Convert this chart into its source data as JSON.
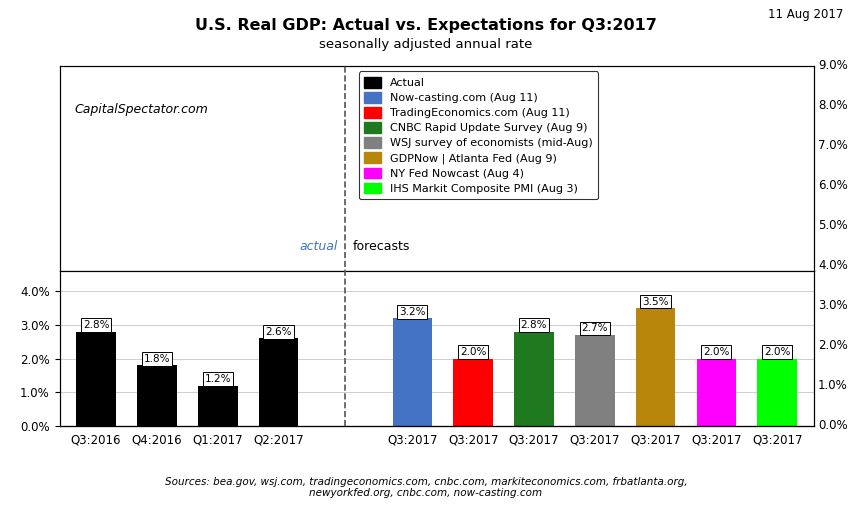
{
  "title": "U.S. Real GDP: Actual vs. Expectations for Q3:2017",
  "subtitle": "seasonally adjusted annual rate",
  "date_label": "11 Aug 2017",
  "source_text": "Sources: bea.gov, wsj.com, tradingeconomics.com, cnbc.com, markiteconomics.com, frbatlanta.org,\nnewyorkfed.org, cnbc.com, now-casting.com",
  "watermark": "CapitalSpectator.com",
  "bars": [
    {
      "label": "Q3:2016",
      "value": 2.8,
      "color": "#000000",
      "section": "actual"
    },
    {
      "label": "Q4:2016",
      "value": 1.8,
      "color": "#000000",
      "section": "actual"
    },
    {
      "label": "Q1:2017",
      "value": 1.2,
      "color": "#000000",
      "section": "actual"
    },
    {
      "label": "Q2:2017",
      "value": 2.6,
      "color": "#000000",
      "section": "actual"
    },
    {
      "label": "Q3:2017",
      "value": 3.2,
      "color": "#4472C4",
      "section": "forecast"
    },
    {
      "label": "Q3:2017",
      "value": 2.0,
      "color": "#FF0000",
      "section": "forecast"
    },
    {
      "label": "Q3:2017",
      "value": 2.8,
      "color": "#1F7A1F",
      "section": "forecast"
    },
    {
      "label": "Q3:2017",
      "value": 2.7,
      "color": "#808080",
      "section": "forecast"
    },
    {
      "label": "Q3:2017",
      "value": 3.5,
      "color": "#B8860B",
      "section": "forecast"
    },
    {
      "label": "Q3:2017",
      "value": 2.0,
      "color": "#FF00FF",
      "section": "forecast"
    },
    {
      "label": "Q3:2017",
      "value": 2.0,
      "color": "#00FF00",
      "section": "forecast"
    }
  ],
  "legend_entries": [
    {
      "label": "Actual",
      "color": "#000000"
    },
    {
      "label": "Now-casting.com (Aug 11)",
      "color": "#4472C4"
    },
    {
      "label": "TradingEconomics.com (Aug 11)",
      "color": "#FF0000"
    },
    {
      "label": "CNBC Rapid Update Survey (Aug 9)",
      "color": "#1F7A1F"
    },
    {
      "label": "WSJ survey of economists (mid-Aug)",
      "color": "#808080"
    },
    {
      "label": "GDPNow | Atlanta Fed (Aug 9)",
      "color": "#B8860B"
    },
    {
      "label": "NY Fed Nowcast (Aug 4)",
      "color": "#FF00FF"
    },
    {
      "label": "IHS Markit Composite PMI (Aug 3)",
      "color": "#00FF00"
    }
  ],
  "background_color": "#FFFFFF",
  "grid_color": "#BBBBBB"
}
